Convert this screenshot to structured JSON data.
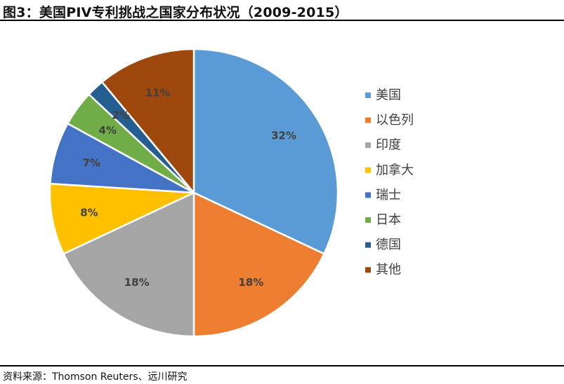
{
  "title": "图3：美国PIV专利挑战之国家分布状况（2009-2015）",
  "source": "资料来源：Thomson Reuters、远川研究",
  "chart_data": {
    "type": "pie",
    "title": "图3：美国PIV专利挑战之国家分布状况（2009-2015）",
    "legend_position": "right",
    "slices": [
      {
        "label": "美国",
        "value": 32,
        "display": "32%",
        "color": "#5b9bd5"
      },
      {
        "label": "以色列",
        "value": 18,
        "display": "18%",
        "color": "#ed7d31"
      },
      {
        "label": "印度",
        "value": 18,
        "display": "18%",
        "color": "#a5a5a5"
      },
      {
        "label": "加拿大",
        "value": 8,
        "display": "8%",
        "color": "#ffc000"
      },
      {
        "label": "瑞士",
        "value": 7,
        "display": "7%",
        "color": "#4472c4"
      },
      {
        "label": "日本",
        "value": 4,
        "display": "4%",
        "color": "#70ad47"
      },
      {
        "label": "德国",
        "value": 2,
        "display": "2%",
        "color": "#255e91"
      },
      {
        "label": "其他",
        "value": 11,
        "display": "11%",
        "color": "#9e480e"
      }
    ]
  }
}
